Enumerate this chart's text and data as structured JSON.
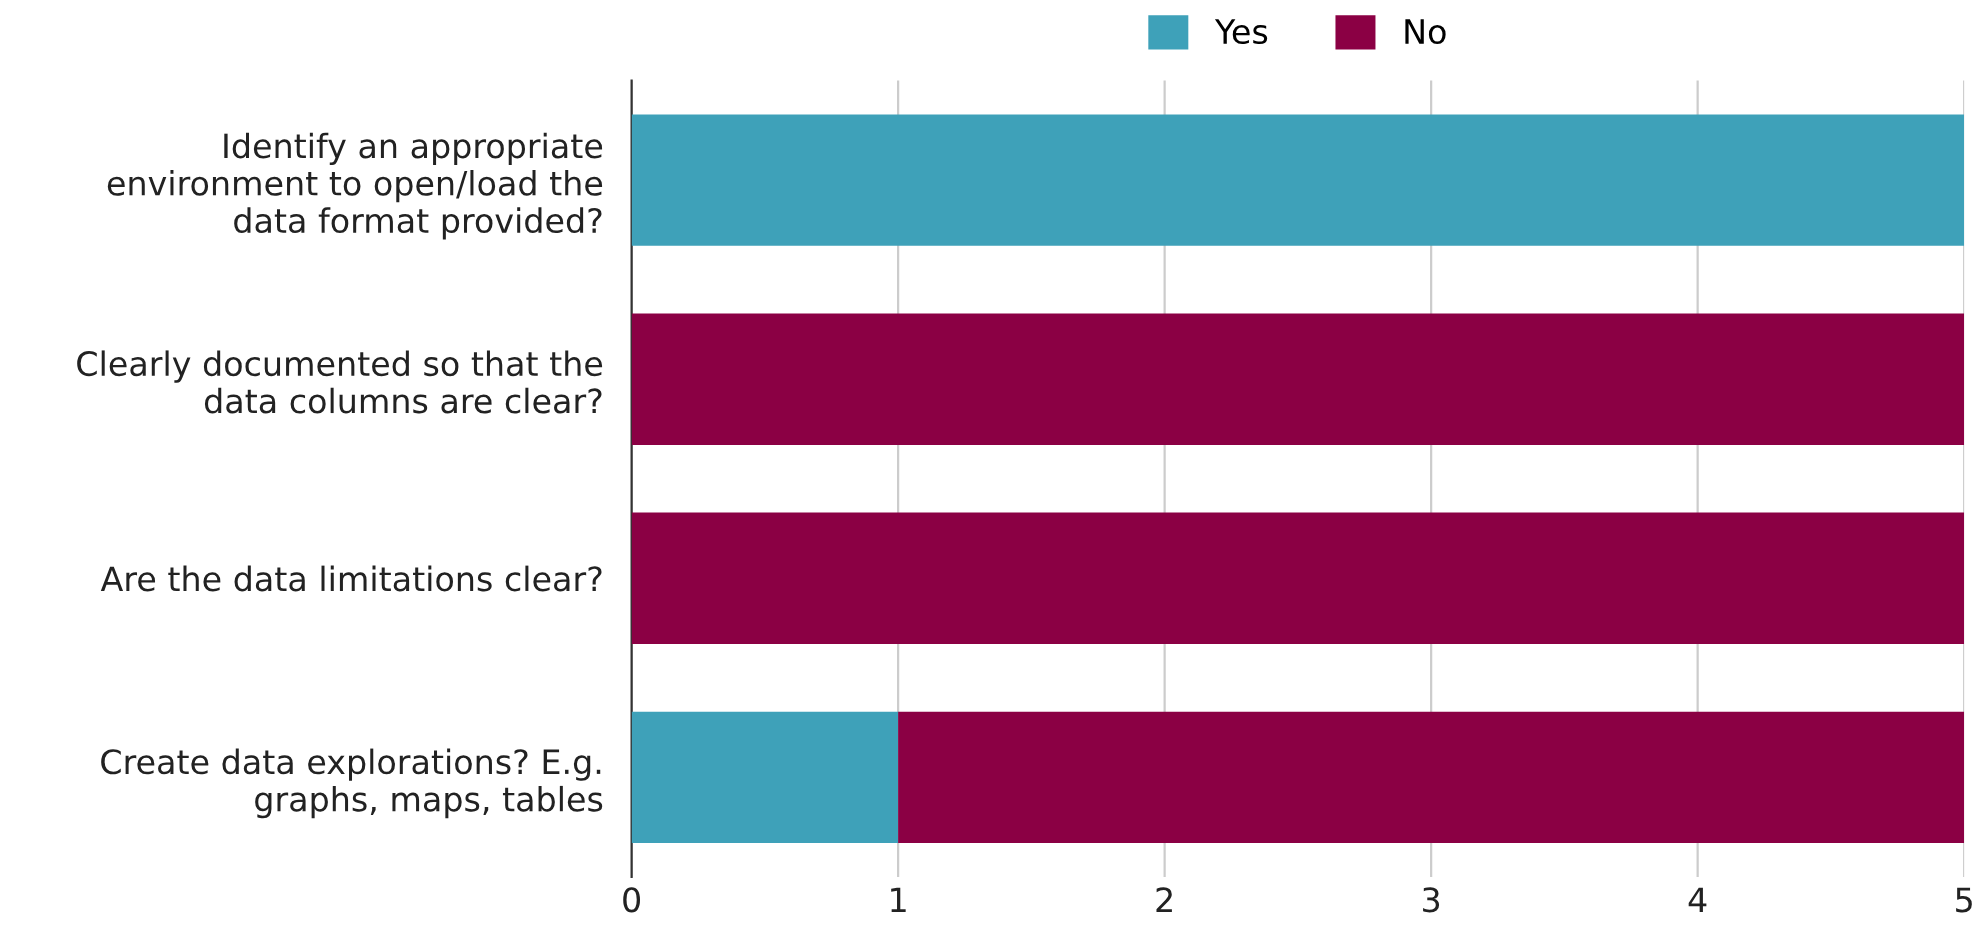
{
  "chart_data": {
    "type": "bar",
    "orientation": "horizontal",
    "stacked": true,
    "categories": [
      "Identify an appropriate\nenvironment to open/load the\ndata format provided?",
      "Clearly documented so that the\ndata columns are clear?",
      "Are the data limitations clear?",
      "Create data explorations? E.g.\ngraphs, maps, tables"
    ],
    "series": [
      {
        "name": "Yes",
        "color": "#3ea1b9",
        "values": [
          5,
          0,
          0,
          1
        ]
      },
      {
        "name": "No",
        "color": "#8b0044",
        "values": [
          0,
          5,
          5,
          4
        ]
      }
    ],
    "xlim": [
      0,
      5
    ],
    "xticks": [
      0,
      1,
      2,
      3,
      4,
      5
    ],
    "grid": "x",
    "legend": "top"
  }
}
